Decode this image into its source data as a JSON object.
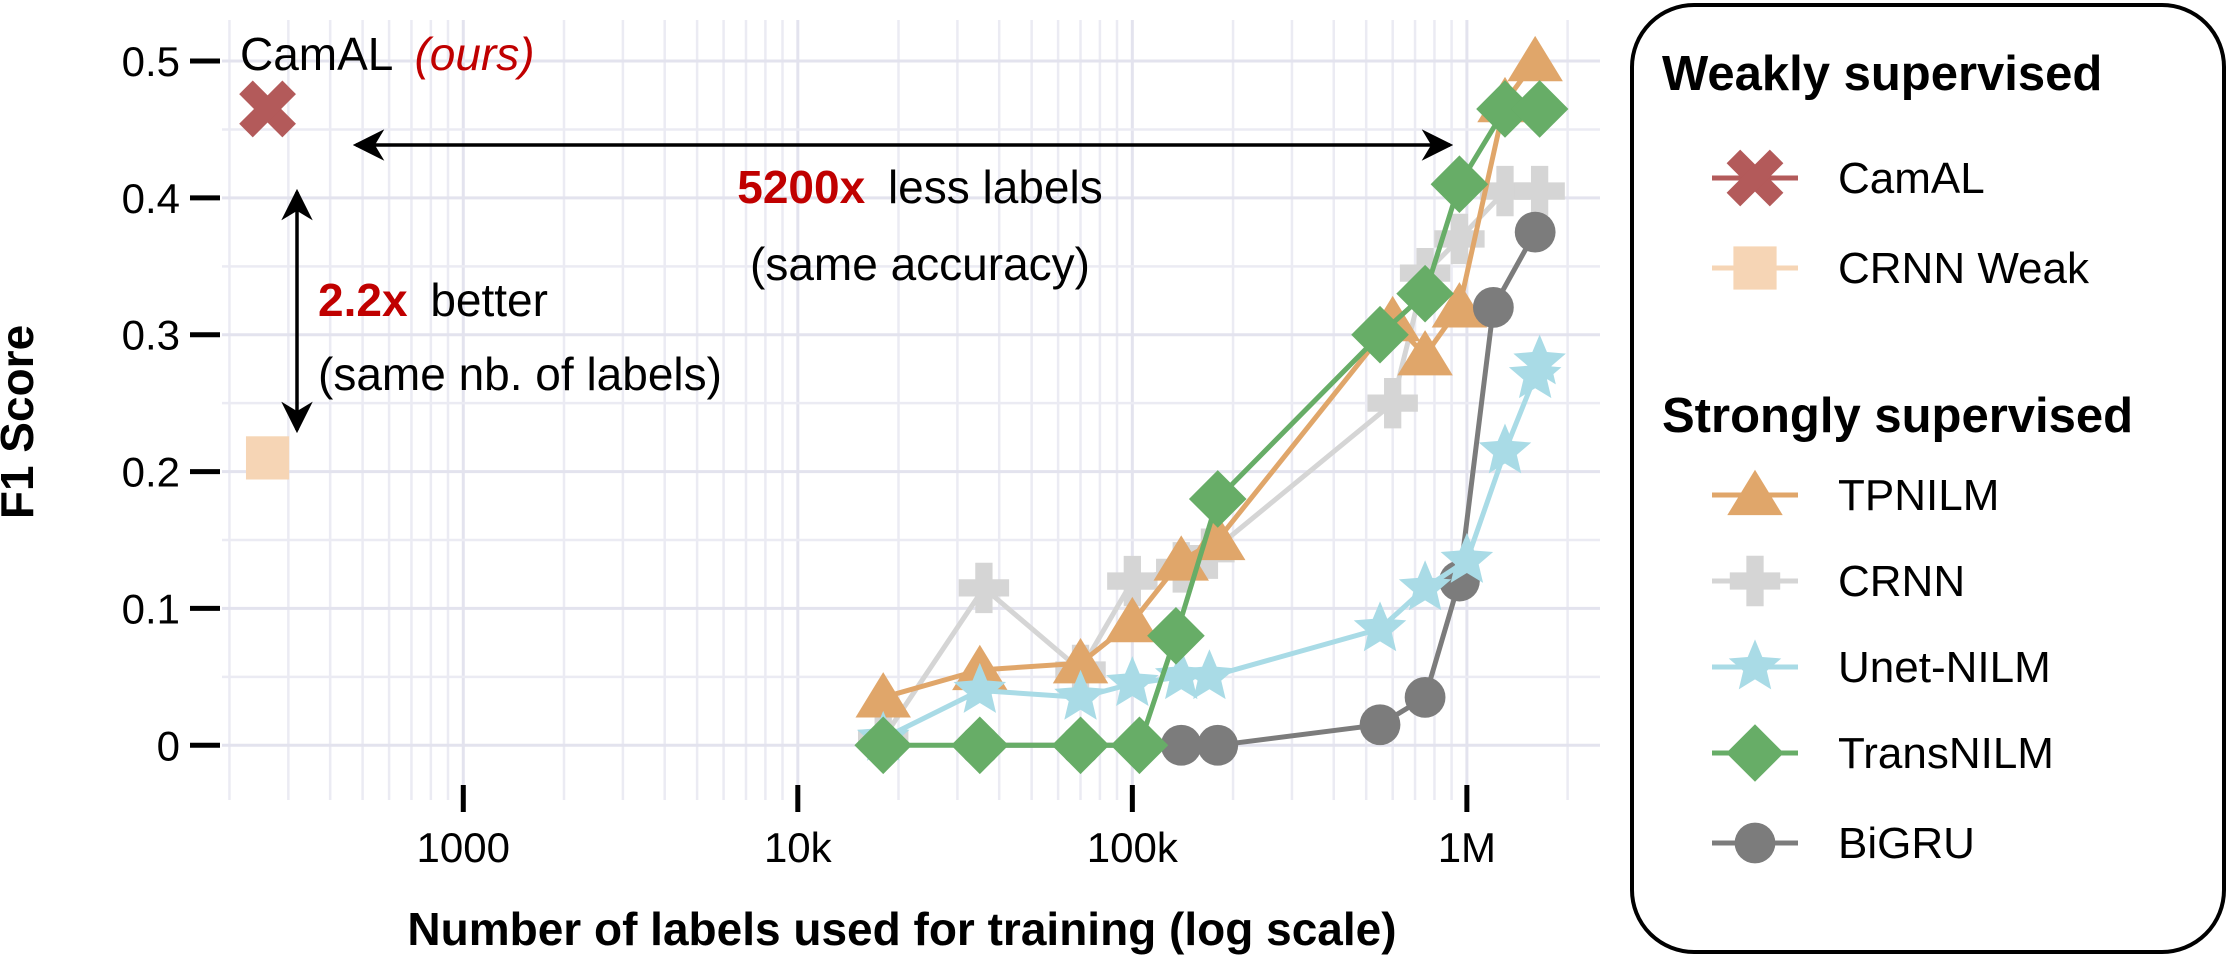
{
  "chart_data": {
    "type": "line",
    "xscale": "log",
    "xlabel": "Number of labels used for training (log scale)",
    "ylabel": "F1 Score",
    "xlim": [
      190,
      2500000
    ],
    "ylim": [
      -0.04,
      0.53
    ],
    "x_ticks": [
      {
        "value": 1000,
        "label": "1000"
      },
      {
        "value": 10000,
        "label": "10k"
      },
      {
        "value": 100000,
        "label": "100k"
      },
      {
        "value": 1000000,
        "label": "1M"
      }
    ],
    "y_ticks": [
      {
        "value": 0,
        "label": "0"
      },
      {
        "value": 0.1,
        "label": "0.1"
      },
      {
        "value": 0.2,
        "label": "0.2"
      },
      {
        "value": 0.3,
        "label": "0.3"
      },
      {
        "value": 0.4,
        "label": "0.4"
      },
      {
        "value": 0.5,
        "label": "0.5"
      }
    ],
    "grid": true,
    "legend_position": "right",
    "legend_groups": [
      {
        "title": "Weakly supervised",
        "entries": [
          "CamAL",
          "CRNN Weak"
        ]
      },
      {
        "title": "Strongly supervised",
        "entries": [
          "TPNILM",
          "CRNN",
          "Unet-NILM",
          "TransNILM",
          "BiGRU"
        ]
      }
    ],
    "series": [
      {
        "name": "CamAL",
        "color": "#b35a5a",
        "marker": "x",
        "points": [
          [
            260,
            0.465
          ]
        ]
      },
      {
        "name": "CRNN Weak",
        "color": "#f6d5b5",
        "marker": "square",
        "points": [
          [
            260,
            0.21
          ]
        ]
      },
      {
        "name": "TPNILM",
        "color": "#e0a66a",
        "marker": "triangle",
        "points": [
          [
            18000,
            0.035
          ],
          [
            35000,
            0.055
          ],
          [
            70000,
            0.06
          ],
          [
            100000,
            0.09
          ],
          [
            140000,
            0.135
          ],
          [
            180000,
            0.15
          ],
          [
            600000,
            0.31
          ],
          [
            750000,
            0.285
          ],
          [
            950000,
            0.32
          ],
          [
            1300000,
            0.47
          ],
          [
            1600000,
            0.5
          ]
        ]
      },
      {
        "name": "CRNN",
        "color": "#d5d5d5",
        "marker": "plus",
        "points": [
          [
            18000,
            0.005
          ],
          [
            36000,
            0.115
          ],
          [
            70000,
            0.055
          ],
          [
            100000,
            0.12
          ],
          [
            140000,
            0.13
          ],
          [
            170000,
            0.14
          ],
          [
            600000,
            0.25
          ],
          [
            750000,
            0.345
          ],
          [
            950000,
            0.37
          ],
          [
            1300000,
            0.405
          ],
          [
            1650000,
            0.405
          ]
        ]
      },
      {
        "name": "Unet-NILM",
        "color": "#a9dbe6",
        "marker": "star",
        "points": [
          [
            18000,
            0.005
          ],
          [
            35000,
            0.04
          ],
          [
            70000,
            0.035
          ],
          [
            100000,
            0.045
          ],
          [
            140000,
            0.05
          ],
          [
            170000,
            0.05
          ],
          [
            550000,
            0.085
          ],
          [
            750000,
            0.115
          ],
          [
            1000000,
            0.135
          ],
          [
            1300000,
            0.215
          ],
          [
            1600000,
            0.27
          ],
          [
            1650000,
            0.28
          ]
        ]
      },
      {
        "name": "TransNILM",
        "color": "#67ad67",
        "marker": "diamond",
        "points": [
          [
            18000,
            0.0
          ],
          [
            35000,
            0.0
          ],
          [
            70000,
            0.0
          ],
          [
            105000,
            0.0
          ],
          [
            135000,
            0.08
          ],
          [
            180000,
            0.18
          ],
          [
            550000,
            0.3
          ],
          [
            750000,
            0.33
          ],
          [
            950000,
            0.41
          ],
          [
            1300000,
            0.465
          ],
          [
            1650000,
            0.465
          ]
        ]
      },
      {
        "name": "BiGRU",
        "color": "#7c7c7c",
        "marker": "circle",
        "points": [
          [
            35000,
            0.0
          ],
          [
            70000,
            0.0
          ],
          [
            140000,
            0.0
          ],
          [
            180000,
            0.0
          ],
          [
            550000,
            0.015
          ],
          [
            750000,
            0.035
          ],
          [
            950000,
            0.12
          ],
          [
            1200000,
            0.32
          ],
          [
            1600000,
            0.375
          ]
        ]
      }
    ],
    "annotations": {
      "camal_label": "CamAL",
      "camal_ours": "(ours)",
      "less_labels_value": "5200x",
      "less_labels_text": "less labels",
      "less_labels_sub": "(same accuracy)",
      "better_value": "2.2x",
      "better_text": "better",
      "better_sub": "(same nb. of labels)"
    }
  }
}
